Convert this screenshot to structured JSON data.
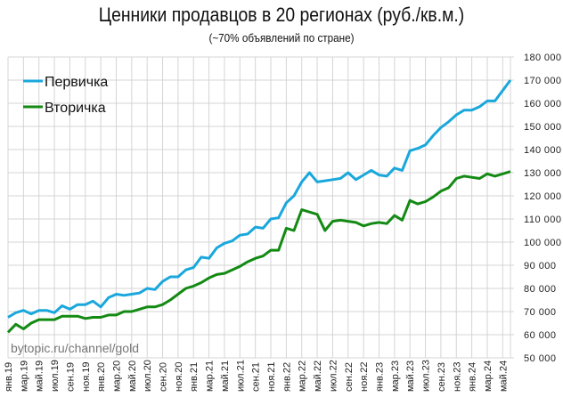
{
  "chart_data": {
    "type": "line",
    "title": "Ценники продавцов в 20 регионах (руб./кв.м.)",
    "subtitle": "(~70% объявлений по стране)",
    "watermark": "bytopic.ru/channel/gold",
    "ylim": [
      50000,
      180000
    ],
    "yticks": [
      "50 000",
      "60 000",
      "70 000",
      "80 000",
      "90 000",
      "100 000",
      "110 000",
      "120 000",
      "130 000",
      "140 000",
      "150 000",
      "160 000",
      "170 000",
      "180 000"
    ],
    "xtick_labels": [
      "янв.19",
      "мар.19",
      "май.19",
      "июл.19",
      "сен.19",
      "ноя.19",
      "янв.20",
      "мар.20",
      "май.20",
      "июл.20",
      "сен.20",
      "ноя.20",
      "янв.21",
      "мар.21",
      "май.21",
      "июл.21",
      "сен.21",
      "ноя.21",
      "янв.22",
      "мар.22",
      "май.22",
      "июл.22",
      "сен.22",
      "ноя.22",
      "янв.23",
      "мар.23",
      "май.23",
      "июл.23",
      "сен.23",
      "ноя.23",
      "янв.24",
      "мар.24",
      "май.24"
    ],
    "x_range": [
      "янв.19",
      "июн.24"
    ],
    "grid": true,
    "legend": "top-left",
    "y_axis_side": "right",
    "series": [
      {
        "name": "Первичка",
        "color": "#1aa7dc",
        "values": [
          67500,
          69500,
          70500,
          69000,
          70500,
          70500,
          69500,
          72500,
          71000,
          73000,
          73000,
          74500,
          72000,
          76000,
          77500,
          77000,
          77500,
          78000,
          80000,
          79500,
          83000,
          85000,
          85000,
          88000,
          89000,
          93500,
          93000,
          97500,
          99500,
          100500,
          103000,
          103500,
          106500,
          106000,
          110000,
          110500,
          117000,
          120000,
          126000,
          130000,
          126000,
          126500,
          127000,
          127500,
          130000,
          127000,
          129000,
          131000,
          129000,
          128500,
          132000,
          131000,
          139500,
          140500,
          142000,
          146000,
          149500,
          152000,
          155000,
          157000,
          157000,
          158500,
          161000,
          161000,
          165500,
          170000
        ]
      },
      {
        "name": "Вторичка",
        "color": "#138a13",
        "values": [
          61000,
          64500,
          62500,
          65000,
          66500,
          66500,
          66500,
          68000,
          68000,
          68000,
          67000,
          67500,
          67500,
          68500,
          68500,
          70000,
          70000,
          71000,
          72000,
          72000,
          73000,
          75000,
          77500,
          80000,
          81000,
          82500,
          84500,
          86000,
          86500,
          88000,
          89500,
          91500,
          93000,
          94000,
          96500,
          96500,
          106000,
          105000,
          114000,
          113000,
          112000,
          105000,
          109000,
          109500,
          109000,
          108500,
          107000,
          108000,
          108500,
          108000,
          111500,
          109500,
          118000,
          116500,
          117500,
          119500,
          122000,
          123500,
          127500,
          128500,
          128000,
          127500,
          129500,
          128500,
          129500,
          130500
        ]
      }
    ]
  }
}
